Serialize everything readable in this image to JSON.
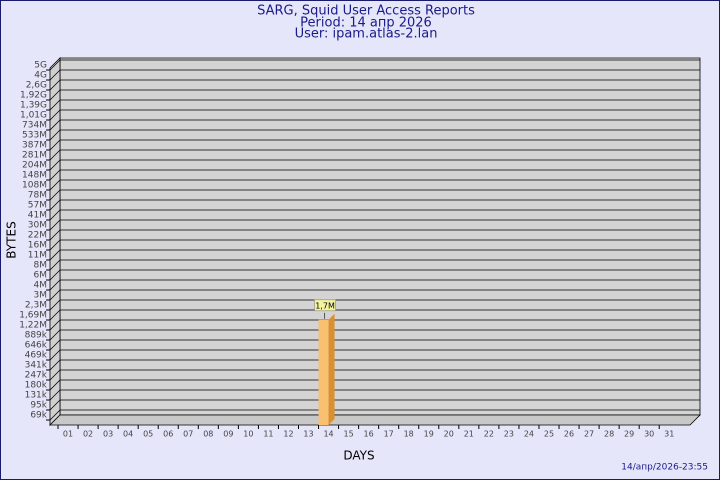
{
  "chart_data": {
    "type": "bar",
    "title": "SARG, Squid User Access Reports",
    "subtitle": "Period: 14 апр 2026",
    "user": "User: ipam.atlas-2.lan",
    "ylabel": "BYTES",
    "xlabel": "DAYS",
    "footer": "14/апр/2026-23:55",
    "log": true,
    "grid": true,
    "color": "#f8c070",
    "categories": [
      "01",
      "02",
      "03",
      "04",
      "05",
      "06",
      "07",
      "08",
      "09",
      "10",
      "11",
      "12",
      "13",
      "14",
      "15",
      "16",
      "17",
      "18",
      "19",
      "20",
      "21",
      "22",
      "23",
      "24",
      "25",
      "26",
      "27",
      "28",
      "29",
      "30",
      "31"
    ],
    "values": [
      null,
      null,
      null,
      null,
      null,
      null,
      null,
      null,
      null,
      null,
      null,
      null,
      null,
      1700000,
      null,
      null,
      null,
      null,
      null,
      null,
      null,
      null,
      null,
      null,
      null,
      null,
      null,
      null,
      null,
      null,
      null
    ],
    "value_labels": [
      null,
      null,
      null,
      null,
      null,
      null,
      null,
      null,
      null,
      null,
      null,
      null,
      null,
      "1,7M",
      null,
      null,
      null,
      null,
      null,
      null,
      null,
      null,
      null,
      null,
      null,
      null,
      null,
      null,
      null,
      null,
      null
    ],
    "ylim": [
      50000,
      5000000000
    ],
    "yticks": [
      {
        "value": 69000,
        "label": "69k"
      },
      {
        "value": 95000,
        "label": "95k"
      },
      {
        "value": 131000,
        "label": "131k"
      },
      {
        "value": 180000,
        "label": "180k"
      },
      {
        "value": 247000,
        "label": "247k"
      },
      {
        "value": 341000,
        "label": "341k"
      },
      {
        "value": 469000,
        "label": "469k"
      },
      {
        "value": 646000,
        "label": "646k"
      },
      {
        "value": 889000,
        "label": "889k"
      },
      {
        "value": 1220000,
        "label": "1,22M"
      },
      {
        "value": 1690000,
        "label": "1,69M"
      },
      {
        "value": 2300000,
        "label": "2,3M"
      },
      {
        "value": 3000000,
        "label": "3M"
      },
      {
        "value": 4000000,
        "label": "4M"
      },
      {
        "value": 6000000,
        "label": "6M"
      },
      {
        "value": 8000000,
        "label": "8M"
      },
      {
        "value": 11000000,
        "label": "11M"
      },
      {
        "value": 16000000,
        "label": "16M"
      },
      {
        "value": 22000000,
        "label": "22M"
      },
      {
        "value": 30000000,
        "label": "30M"
      },
      {
        "value": 41000000,
        "label": "41M"
      },
      {
        "value": 57000000,
        "label": "57M"
      },
      {
        "value": 78000000,
        "label": "78M"
      },
      {
        "value": 108000000,
        "label": "108M"
      },
      {
        "value": 148000000,
        "label": "148M"
      },
      {
        "value": 204000000,
        "label": "204M"
      },
      {
        "value": 281000000,
        "label": "281M"
      },
      {
        "value": 387000000,
        "label": "387M"
      },
      {
        "value": 533000000,
        "label": "533M"
      },
      {
        "value": 734000000,
        "label": "734M"
      },
      {
        "value": 1010000000,
        "label": "1,01G"
      },
      {
        "value": 1390000000,
        "label": "1,39G"
      },
      {
        "value": 1920000000,
        "label": "1,92G"
      },
      {
        "value": 2600000000,
        "label": "2,6G"
      },
      {
        "value": 4000000000,
        "label": "4G"
      },
      {
        "value": 5000000000,
        "label": "5G"
      }
    ]
  }
}
